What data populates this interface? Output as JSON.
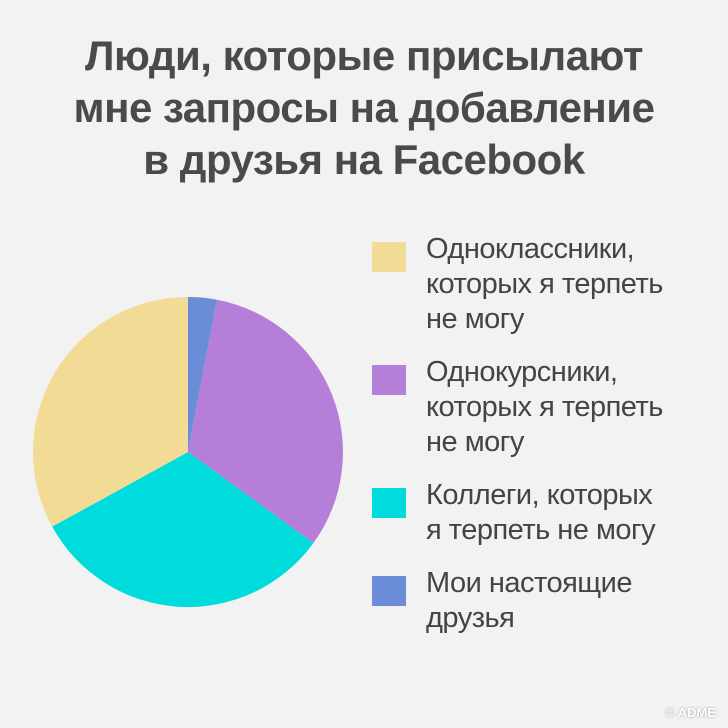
{
  "title_lines": [
    "Люди, которые присылают",
    "мне запросы на добавление",
    "в друзья на Facebook"
  ],
  "watermark": "© ADME",
  "chart_data": {
    "type": "pie",
    "title": "Люди, которые присылают мне запросы на добавление в друзья на Facebook",
    "legend_position": "right",
    "slices": [
      {
        "label": "Одноклассники, которых я терпеть не могу",
        "lines": [
          "Одноклассники,",
          "которых я терпеть",
          "не могу"
        ],
        "value": 33,
        "color": "#f2dc95"
      },
      {
        "label": "Однокурсники, которых я терпеть не могу",
        "lines": [
          "Однокурсники,",
          "которых я терпеть",
          "не могу"
        ],
        "value": 32,
        "color": "#b57ed9"
      },
      {
        "label": "Коллеги, которых я терпеть не могу",
        "lines": [
          "Коллеги, которых",
          "я терпеть не могу"
        ],
        "value": 32,
        "color": "#00dcdc"
      },
      {
        "label": "Мои настоящие друзья",
        "lines": [
          "Мои настоящие",
          "друзья"
        ],
        "value": 3,
        "color": "#6b8cd6"
      }
    ],
    "slice_order_clockwise_from_top": [
      3,
      1,
      2,
      0
    ]
  }
}
